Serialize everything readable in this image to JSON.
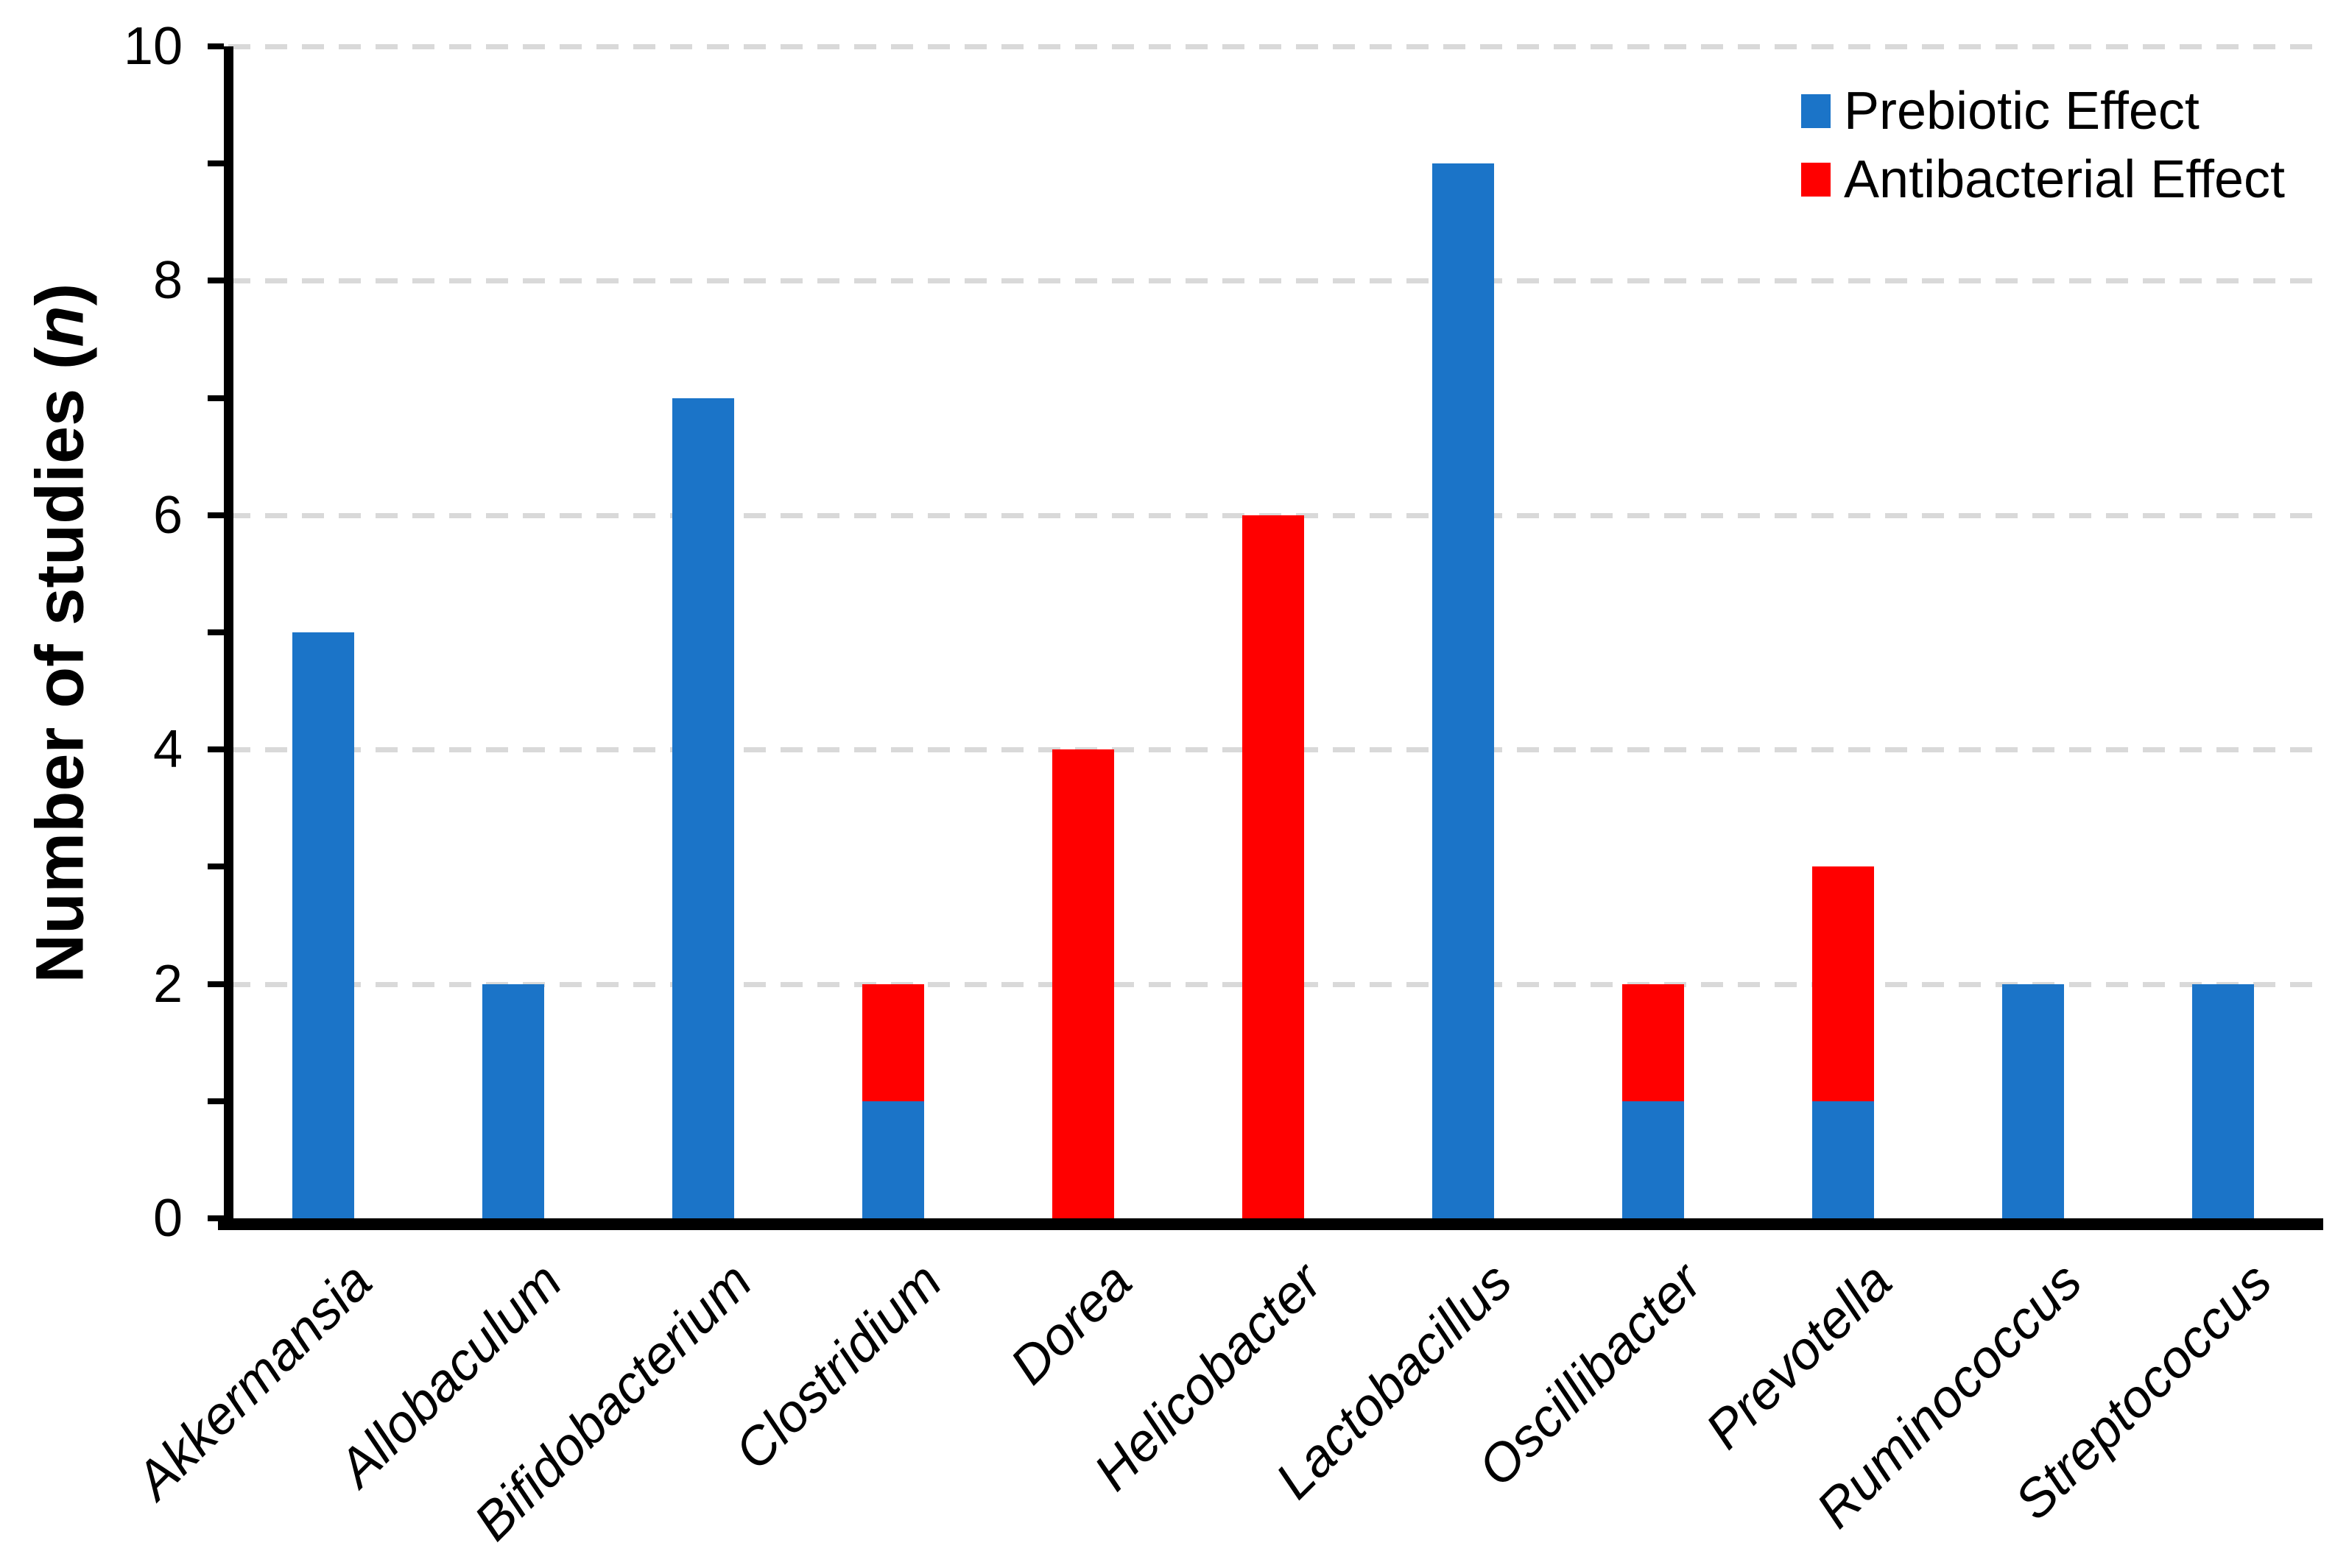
{
  "chart_data": {
    "type": "bar",
    "stacked": true,
    "categories": [
      "Akkermansia",
      "Allobaculum",
      "Bifidobacterium",
      "Clostridium",
      "Dorea",
      "Helicobacter",
      "Lactobacillus",
      "Oscillibacter",
      "Prevotella",
      "Ruminococcus",
      "Streptococcus"
    ],
    "series": [
      {
        "name": "Prebiotic Effect",
        "color": "#1B74C8",
        "values": [
          5,
          2,
          7,
          1,
          0,
          0,
          9,
          1,
          1,
          2,
          2
        ]
      },
      {
        "name": "Antibacterial Effect",
        "color": "#FF0000",
        "values": [
          0,
          0,
          0,
          1,
          4,
          6,
          0,
          1,
          2,
          0,
          0
        ]
      }
    ],
    "ylabel_before": "Number of studies (",
    "ylabel_italic": "n",
    "ylabel_after": ")",
    "xlabel": "",
    "title": "",
    "ylim": [
      0,
      10
    ],
    "ytick_labels": [
      "0",
      "2",
      "4",
      "6",
      "8",
      "10"
    ],
    "ytick_values": [
      0,
      2,
      4,
      6,
      8,
      10
    ],
    "minor_tick_every": 1,
    "grid": "horizontal-dashed",
    "gridline_values": [
      2,
      4,
      6,
      8,
      10
    ],
    "legend_position": "top-right",
    "x_label_style": "italic, rotated 45deg",
    "colors": {
      "grid": "#D9D9D9",
      "axis": "#000000",
      "background": "#FFFFFF",
      "text": "#000000"
    }
  }
}
